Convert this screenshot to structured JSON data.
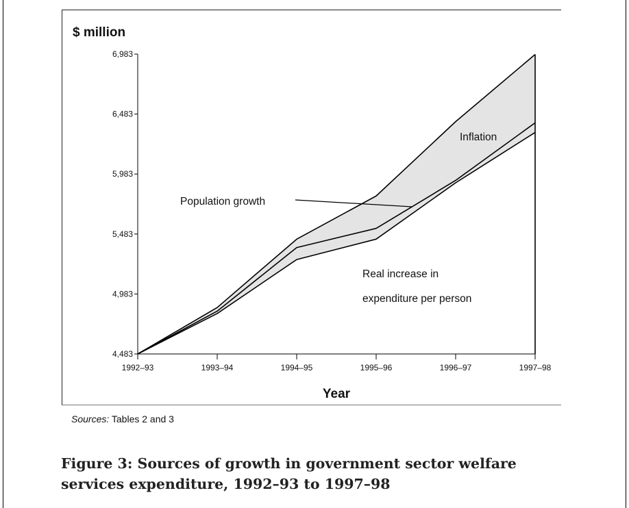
{
  "chart_data": {
    "type": "area",
    "ylabel": "$ million",
    "xlabel": "Year",
    "categories": [
      "1992–93",
      "1993–94",
      "1994–95",
      "1995–96",
      "1996–97",
      "1997–98"
    ],
    "yticks": [
      "4,483",
      "4,983",
      "5,483",
      "5,983",
      "6,483",
      "6,983"
    ],
    "ylim": [
      4483,
      6983
    ],
    "series": [
      {
        "name": "Real increase in expenditure per person",
        "values": [
          4483,
          4820,
          5270,
          5440,
          5910,
          6330
        ],
        "color": "#000000"
      },
      {
        "name": "Population growth",
        "values": [
          4483,
          4840,
          5370,
          5530,
          5930,
          6410
        ],
        "color": "#000000"
      },
      {
        "name": "Inflation",
        "values": [
          4483,
          4870,
          5440,
          5800,
          6420,
          6980
        ],
        "color": "#000000"
      }
    ],
    "fill_color": "#e4e4e4",
    "grid": false,
    "legend": "none"
  },
  "annotations": {
    "inflation": "Inflation",
    "population": "Population growth",
    "real_line1": "Real increase in",
    "real_line2": "expenditure per person"
  },
  "sources": {
    "label": "Sources:",
    "text": "Tables 2 and 3"
  },
  "caption": {
    "line1": "Figure 3: Sources of growth in government sector welfare",
    "line2": "services expenditure, 1992–93 to 1997–98"
  }
}
